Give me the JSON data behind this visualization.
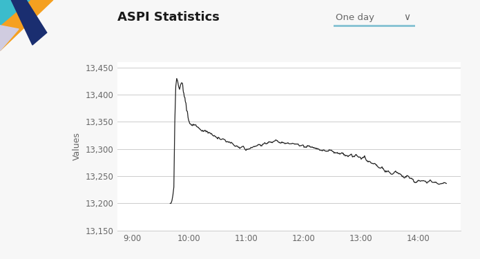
{
  "title": "ASPI Statistics",
  "ylabel": "Values",
  "background_color": "#f7f7f7",
  "plot_bg_color": "#ffffff",
  "line_color": "#222222",
  "grid_color": "#cccccc",
  "title_color": "#1a1a1a",
  "axis_label_color": "#666666",
  "tick_color": "#666666",
  "ylim": [
    13150,
    13460
  ],
  "yticks": [
    13150,
    13200,
    13250,
    13300,
    13350,
    13400,
    13450
  ],
  "xtick_positions": [
    0,
    60,
    120,
    180,
    240,
    300
  ],
  "xtick_labels": [
    "9:00",
    "10:00",
    "11:00",
    "12:00",
    "13:00",
    "14:00"
  ],
  "xlim_start": -15,
  "xlim_end": 345,
  "dropdown_text": "One day",
  "dropdown_color": "#666666",
  "dropdown_underline_color": "#89c4d4",
  "logo_colors": {
    "orange": "#f5a020",
    "teal": "#3bbccc",
    "dark_blue": "#1a2e70",
    "light_purple": "#d0cce0"
  }
}
